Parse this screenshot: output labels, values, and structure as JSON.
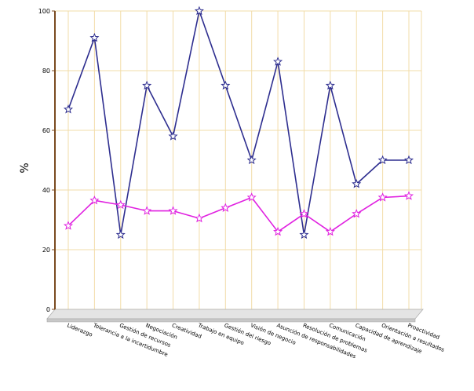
{
  "chart_data": {
    "type": "line",
    "title": "",
    "xlabel": "",
    "ylabel": "%",
    "ylim": [
      0,
      100
    ],
    "yticks": [
      0,
      20,
      40,
      60,
      80,
      100
    ],
    "grid": true,
    "legend": "none",
    "categories": [
      "Liderazgo",
      "Tolerancia a la incertidumbre",
      "Gestión de recursos",
      "Negociación",
      "Creatividad",
      "Trabajo en equipo",
      "Gestión del riesgo",
      "Visión de negocio",
      "Asunción de responsabilidades",
      "Resolución de problemas",
      "Comunicación",
      "Capacidad de aprendizaje",
      "Orientación a resultados",
      "Proactividad"
    ],
    "series": [
      {
        "color": "#2e2e8f",
        "values": [
          67,
          91,
          25,
          75,
          58,
          100,
          75,
          50,
          83,
          25,
          75,
          42,
          50,
          50
        ]
      },
      {
        "color": "#e020e0",
        "values": [
          28,
          36.5,
          35,
          33,
          33,
          30.5,
          34,
          37.5,
          26,
          32,
          26,
          32,
          37.5,
          38
        ]
      }
    ],
    "colors": {
      "grid": "#f2dca8",
      "axis": "#7a4a20",
      "floor": "#c8c8c8"
    }
  }
}
